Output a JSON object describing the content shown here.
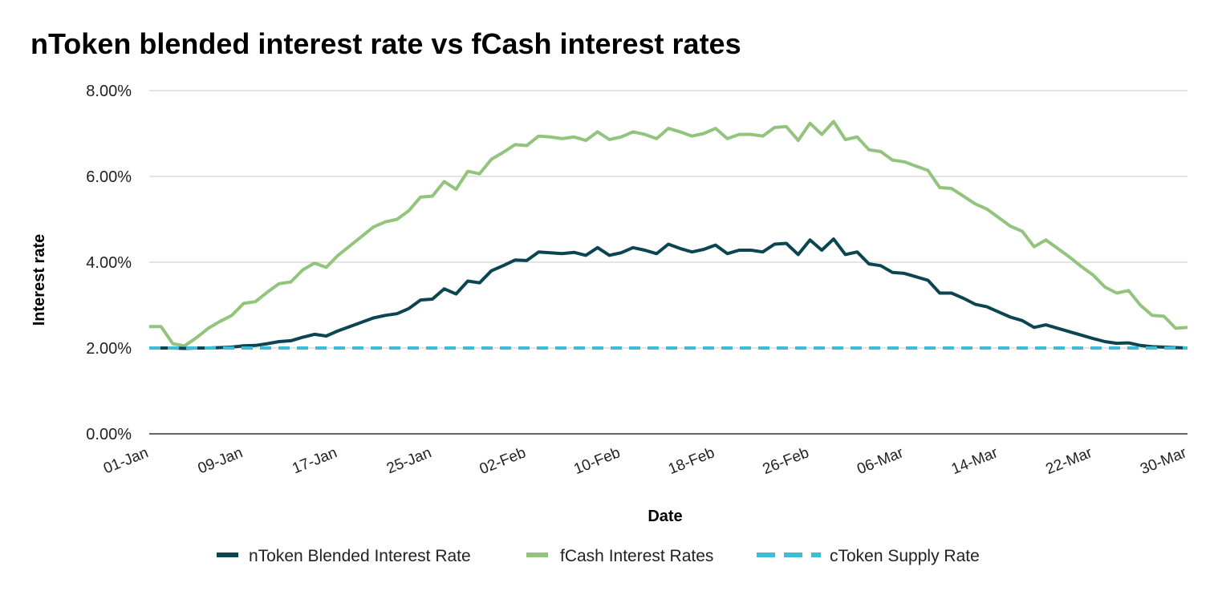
{
  "chart_data": {
    "type": "line",
    "title": "nToken blended interest rate vs fCash interest rates",
    "xlabel": "Date",
    "ylabel": "Interest rate",
    "ylim": [
      0,
      8
    ],
    "y_ticks": [
      "0.00%",
      "2.00%",
      "4.00%",
      "6.00%",
      "8.00%"
    ],
    "x_tick_labels": [
      "01-Jan",
      "09-Jan",
      "17-Jan",
      "25-Jan",
      "02-Feb",
      "10-Feb",
      "18-Feb",
      "26-Feb",
      "06-Mar",
      "14-Mar",
      "22-Mar",
      "30-Mar"
    ],
    "x_start": "01-Jan",
    "x_end": "30-Mar",
    "grid": "horizontal",
    "legend_position": "bottom",
    "series": [
      {
        "name": "nToken Blended Interest Rate",
        "color": "#0b4552",
        "style": "solid",
        "values": [
          2.0,
          2.0,
          2.0,
          1.99,
          2.0,
          2.0,
          2.01,
          2.02,
          2.05,
          2.06,
          2.1,
          2.15,
          2.17,
          2.25,
          2.32,
          2.28,
          2.4,
          2.5,
          2.6,
          2.7,
          2.76,
          2.8,
          2.92,
          3.12,
          3.14,
          3.38,
          3.26,
          3.56,
          3.52,
          3.8,
          3.92,
          4.05,
          4.04,
          4.24,
          4.22,
          4.2,
          4.23,
          4.16,
          4.34,
          4.16,
          4.22,
          4.34,
          4.28,
          4.2,
          4.42,
          4.32,
          4.24,
          4.3,
          4.4,
          4.2,
          4.28,
          4.28,
          4.24,
          4.42,
          4.44,
          4.18,
          4.52,
          4.28,
          4.54,
          4.18,
          4.24,
          3.96,
          3.92,
          3.76,
          3.74,
          3.66,
          3.58,
          3.28,
          3.28,
          3.16,
          3.02,
          2.96,
          2.84,
          2.72,
          2.64,
          2.48,
          2.54,
          2.46,
          2.38,
          2.3,
          2.22,
          2.15,
          2.11,
          2.12,
          2.06,
          2.03,
          2.02,
          2.01,
          2.0
        ]
      },
      {
        "name": "fCash Interest Rates",
        "color": "#93c47d",
        "style": "solid",
        "values": [
          2.5,
          2.5,
          2.1,
          2.05,
          2.24,
          2.46,
          2.62,
          2.76,
          3.04,
          3.08,
          3.3,
          3.5,
          3.54,
          3.82,
          3.98,
          3.88,
          4.16,
          4.38,
          4.6,
          4.82,
          4.94,
          5.0,
          5.2,
          5.52,
          5.54,
          5.88,
          5.7,
          6.12,
          6.06,
          6.4,
          6.56,
          6.74,
          6.72,
          6.94,
          6.92,
          6.88,
          6.92,
          6.84,
          7.04,
          6.86,
          6.92,
          7.04,
          6.98,
          6.88,
          7.12,
          7.04,
          6.94,
          7.0,
          7.12,
          6.88,
          6.98,
          6.98,
          6.94,
          7.14,
          7.16,
          6.84,
          7.24,
          6.98,
          7.28,
          6.86,
          6.92,
          6.62,
          6.58,
          6.38,
          6.34,
          6.24,
          6.14,
          5.74,
          5.72,
          5.54,
          5.36,
          5.24,
          5.04,
          4.84,
          4.72,
          4.36,
          4.52,
          4.32,
          4.12,
          3.9,
          3.7,
          3.42,
          3.28,
          3.34,
          3.0,
          2.76,
          2.74,
          2.46,
          2.48
        ]
      },
      {
        "name": "cToken Supply Rate",
        "color": "#3cbed6",
        "style": "dashed",
        "values": [
          2.0,
          2.0,
          2.0,
          2.0,
          2.0,
          2.0,
          2.0,
          2.0,
          2.0,
          2.0,
          2.0,
          2.0,
          2.0,
          2.0,
          2.0,
          2.0,
          2.0,
          2.0,
          2.0,
          2.0,
          2.0,
          2.0,
          2.0,
          2.0,
          2.0,
          2.0,
          2.0,
          2.0,
          2.0,
          2.0,
          2.0,
          2.0,
          2.0,
          2.0,
          2.0,
          2.0,
          2.0,
          2.0,
          2.0,
          2.0,
          2.0,
          2.0,
          2.0,
          2.0,
          2.0,
          2.0,
          2.0,
          2.0,
          2.0,
          2.0,
          2.0,
          2.0,
          2.0,
          2.0,
          2.0,
          2.0,
          2.0,
          2.0,
          2.0,
          2.0,
          2.0,
          2.0,
          2.0,
          2.0,
          2.0,
          2.0,
          2.0,
          2.0,
          2.0,
          2.0,
          2.0,
          2.0,
          2.0,
          2.0,
          2.0,
          2.0,
          2.0,
          2.0,
          2.0,
          2.0,
          2.0,
          2.0,
          2.0,
          2.0,
          2.0,
          2.0,
          2.0,
          2.0,
          2.0
        ]
      }
    ]
  }
}
